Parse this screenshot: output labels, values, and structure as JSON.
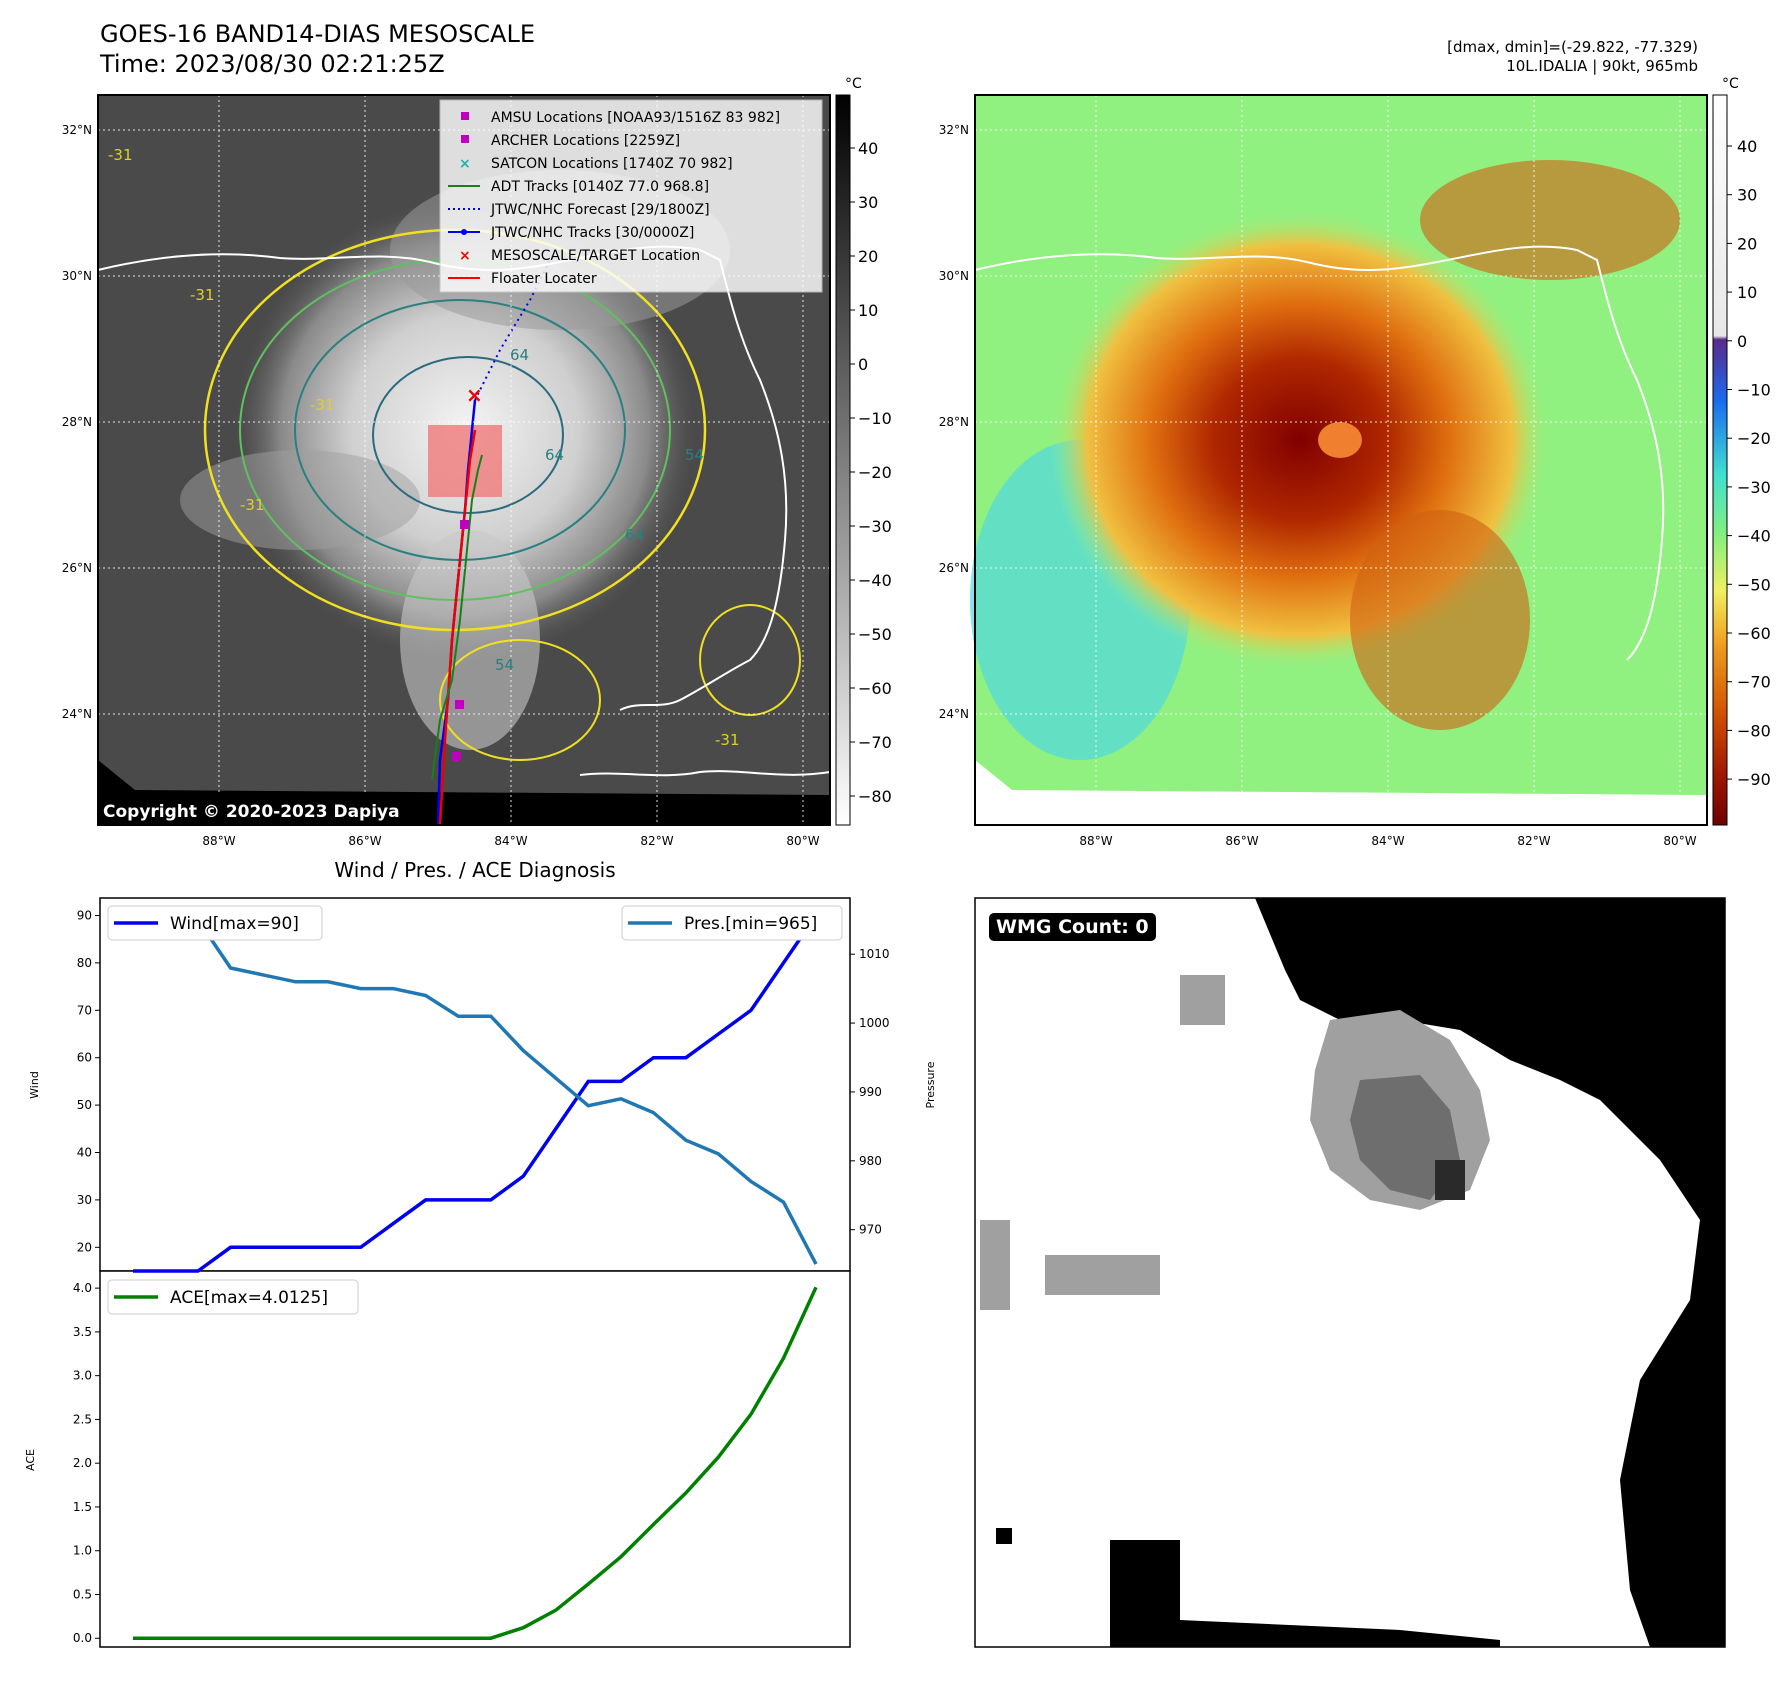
{
  "header": {
    "title": "GOES-16 BAND14-DIAS MESOSCALE",
    "time": "Time: 2023/08/30 02:21:25Z",
    "stats": "[dmax, dmin]=(-29.822, -77.329)",
    "storm": "10L.IDALIA | 90kt, 965mb"
  },
  "map_axes": {
    "lon_labels": [
      "88°W",
      "86°W",
      "84°W",
      "82°W",
      "80°W"
    ],
    "lat_labels": [
      "32°N",
      "30°N",
      "28°N",
      "26°N",
      "24°N"
    ]
  },
  "gray_colorbar": {
    "unit": "°C",
    "ticks": [
      "40",
      "30",
      "20",
      "10",
      "0",
      "−10",
      "−20",
      "−30",
      "−40",
      "−50",
      "−60",
      "−70",
      "−80"
    ]
  },
  "color_colorbar": {
    "unit": "°C",
    "ticks": [
      "40",
      "30",
      "20",
      "10",
      "0",
      "−10",
      "−20",
      "−30",
      "−40",
      "−50",
      "−60",
      "−70",
      "−80",
      "−90"
    ]
  },
  "legend": [
    {
      "label": "AMSU Locations [NOAA93/1516Z 83 982]",
      "color": "#c000c0",
      "marker": "square"
    },
    {
      "label": "ARCHER Locations [2259Z]",
      "color": "#c000c0",
      "marker": "square"
    },
    {
      "label": "SATCON Locations [1740Z 70 982]",
      "color": "#20b2aa",
      "marker": "x"
    },
    {
      "label": "ADT Tracks [0140Z 77.0 968.8]",
      "color": "#1a7f1a",
      "marker": "line"
    },
    {
      "label": "JTWC/NHC Forecast [29/1800Z]",
      "color": "#0000ff",
      "marker": "dotted"
    },
    {
      "label": "JTWC/NHC Tracks [30/0000Z]",
      "color": "#0000ff",
      "marker": "line-dot"
    },
    {
      "label": "MESOSCALE/TARGET Location",
      "color": "#ff0000",
      "marker": "x"
    },
    {
      "label": "Floater Locater",
      "color": "#ff0000",
      "marker": "line"
    }
  ],
  "contour_labels": [
    "-31",
    "-31",
    "-31",
    "-31",
    "-31",
    "64",
    "64",
    "54",
    "54",
    "64"
  ],
  "copyright": "Copyright © 2020-2023 Dapiya",
  "wmg": {
    "label": "WMG Count: 0"
  },
  "chart_data": [
    {
      "type": "line",
      "title": "Wind / Pres. / ACE Diagnosis",
      "ylabel": "Wind",
      "ylabel_right": "Pressure",
      "ylim": [
        15,
        92
      ],
      "ylim_right": [
        964,
        1017
      ],
      "y_ticks": [
        20,
        30,
        40,
        50,
        60,
        70,
        80,
        90
      ],
      "y_ticks_right": [
        970,
        980,
        990,
        1000,
        1010
      ],
      "x": [
        0,
        1,
        2,
        3,
        4,
        5,
        6,
        7,
        8,
        9,
        10,
        11,
        12,
        13,
        14,
        15,
        16,
        17,
        18,
        19,
        20,
        21
      ],
      "series": [
        {
          "name": "Wind[max=90]",
          "axis": "left",
          "color": "#0000ee",
          "values": [
            15,
            15,
            15,
            20,
            20,
            20,
            20,
            20,
            25,
            30,
            30,
            30,
            35,
            45,
            55,
            55,
            60,
            60,
            65,
            70,
            80,
            90
          ]
        },
        {
          "name": "Pres.[min=965]",
          "axis": "right",
          "color": "#1f77b4",
          "values": [
            1015,
            1015,
            1015,
            1008,
            1007,
            1006,
            1006,
            1005,
            1005,
            1004,
            1001,
            1001,
            996,
            992,
            988,
            989,
            987,
            983,
            981,
            977,
            974,
            965
          ]
        }
      ]
    },
    {
      "type": "line",
      "ylabel": "ACE",
      "ylim": [
        -0.1,
        4.15
      ],
      "y_ticks": [
        0.0,
        0.5,
        1.0,
        1.5,
        2.0,
        2.5,
        3.0,
        3.5,
        4.0
      ],
      "y_tick_labels": [
        "0.0",
        "0.5",
        "1.0",
        "1.5",
        "2.0",
        "2.5",
        "3.0",
        "3.5",
        "4.0"
      ],
      "x": [
        0,
        1,
        2,
        3,
        4,
        5,
        6,
        7,
        8,
        9,
        10,
        11,
        12,
        13,
        14,
        15,
        16,
        17,
        18,
        19,
        20,
        21
      ],
      "series": [
        {
          "name": "ACE[max=4.0125]",
          "color": "#008000",
          "values": [
            0,
            0,
            0,
            0,
            0,
            0,
            0,
            0,
            0,
            0,
            0,
            0,
            0.12,
            0.32,
            0.62,
            0.93,
            1.3,
            1.66,
            2.07,
            2.56,
            3.2,
            4.01
          ]
        }
      ]
    }
  ]
}
